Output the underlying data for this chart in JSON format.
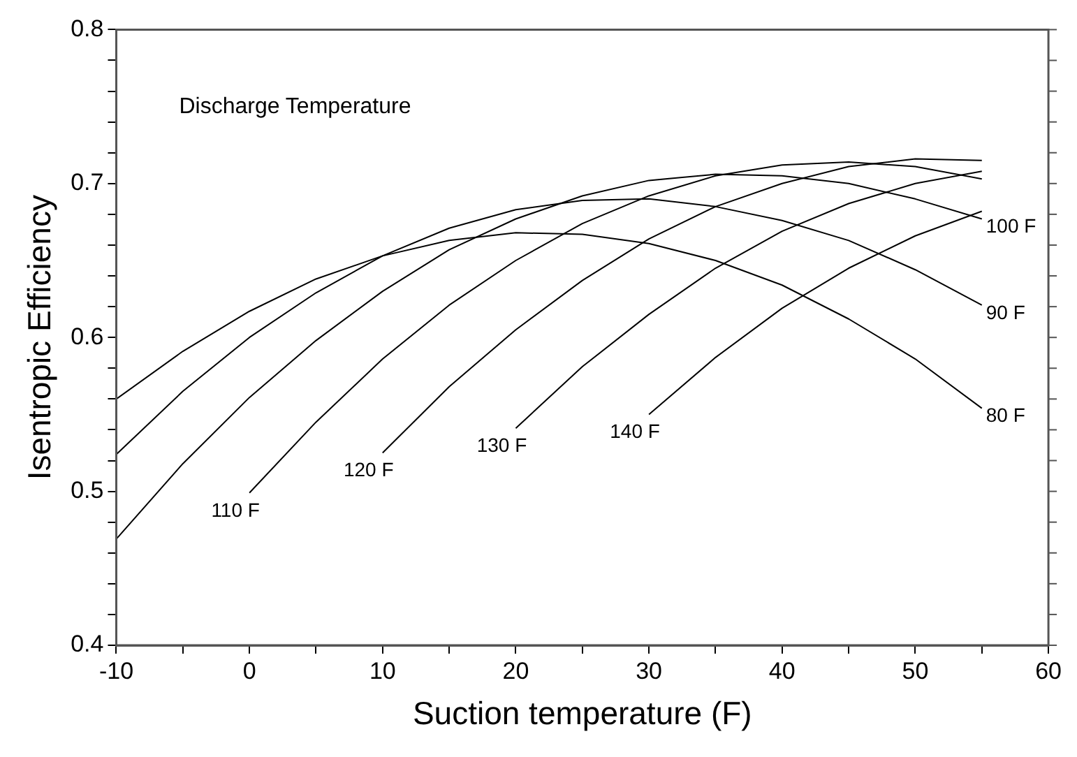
{
  "chart_data": {
    "type": "line",
    "xlabel": "Suction temperature (F)",
    "ylabel": "Isentropic Efficiency",
    "annotations": [
      "Discharge Temperature"
    ],
    "xlim": [
      -10,
      60
    ],
    "ylim": [
      0.4,
      0.8
    ],
    "xticks": [
      -10,
      {
        "value": -5,
        "label": null
      },
      0,
      {
        "value": 5,
        "label": null
      },
      10,
      {
        "value": 15,
        "label": null
      },
      20,
      {
        "value": 25,
        "label": null
      },
      30,
      {
        "value": 35,
        "label": null
      },
      40,
      {
        "value": 45,
        "label": null
      },
      50,
      {
        "value": 55,
        "label": null
      },
      60
    ],
    "yticks": [
      0.4,
      {
        "value": 0.42,
        "label": null
      },
      {
        "value": 0.44,
        "label": null
      },
      {
        "value": 0.46,
        "label": null
      },
      {
        "value": 0.48,
        "label": null
      },
      0.5,
      {
        "value": 0.52,
        "label": null
      },
      {
        "value": 0.54,
        "label": null
      },
      {
        "value": 0.56,
        "label": null
      },
      {
        "value": 0.58,
        "label": null
      },
      0.6,
      {
        "value": 0.62,
        "label": null
      },
      {
        "value": 0.64,
        "label": null
      },
      {
        "value": 0.66,
        "label": null
      },
      {
        "value": 0.68,
        "label": null
      },
      0.7,
      {
        "value": 0.72,
        "label": null
      },
      {
        "value": 0.74,
        "label": null
      },
      {
        "value": 0.76,
        "label": null
      },
      {
        "value": 0.78,
        "label": null
      },
      0.8
    ],
    "grid": false,
    "legend": false,
    "marker": "none",
    "line_style": "solid",
    "series": [
      {
        "name": "80 F",
        "color": "#000000",
        "x": [
          -10,
          -5,
          0,
          5,
          10,
          15,
          20,
          25,
          30,
          35,
          40,
          45,
          50,
          55
        ],
        "values": [
          0.56,
          0.591,
          0.617,
          0.638,
          0.653,
          0.663,
          0.668,
          0.667,
          0.661,
          0.65,
          0.634,
          0.612,
          0.586,
          0.554
        ]
      },
      {
        "name": "90 F",
        "color": "#000000",
        "x": [
          -10,
          -5,
          0,
          5,
          10,
          15,
          20,
          25,
          30,
          35,
          40,
          45,
          50,
          55
        ],
        "values": [
          0.524,
          0.565,
          0.6,
          0.629,
          0.653,
          0.671,
          0.683,
          0.689,
          0.69,
          0.685,
          0.676,
          0.663,
          0.644,
          0.621
        ]
      },
      {
        "name": "100 F",
        "color": "#000000",
        "x": [
          -10,
          -5,
          0,
          5,
          10,
          15,
          20,
          25,
          30,
          35,
          40,
          45,
          50,
          55
        ],
        "values": [
          0.469,
          0.518,
          0.561,
          0.598,
          0.63,
          0.657,
          0.677,
          0.692,
          0.702,
          0.706,
          0.705,
          0.7,
          0.69,
          0.677
        ]
      },
      {
        "name": "110 F",
        "color": "#000000",
        "x": [
          0,
          5,
          10,
          15,
          20,
          25,
          30,
          35,
          40,
          45,
          50,
          55
        ],
        "values": [
          0.499,
          0.545,
          0.586,
          0.621,
          0.65,
          0.674,
          0.692,
          0.705,
          0.712,
          0.714,
          0.711,
          0.703
        ]
      },
      {
        "name": "120 F",
        "color": "#000000",
        "x": [
          10,
          15,
          20,
          25,
          30,
          35,
          40,
          45,
          50,
          55
        ],
        "values": [
          0.525,
          0.568,
          0.605,
          0.637,
          0.664,
          0.685,
          0.7,
          0.711,
          0.716,
          0.715
        ]
      },
      {
        "name": "130 F",
        "color": "#000000",
        "x": [
          20,
          25,
          30,
          35,
          40,
          45,
          50,
          55
        ],
        "values": [
          0.541,
          0.581,
          0.615,
          0.645,
          0.669,
          0.687,
          0.7,
          0.708
        ]
      },
      {
        "name": "140 F",
        "color": "#000000",
        "x": [
          30,
          35,
          40,
          45,
          50,
          55
        ],
        "values": [
          0.55,
          0.587,
          0.619,
          0.645,
          0.666,
          0.682
        ]
      }
    ]
  }
}
